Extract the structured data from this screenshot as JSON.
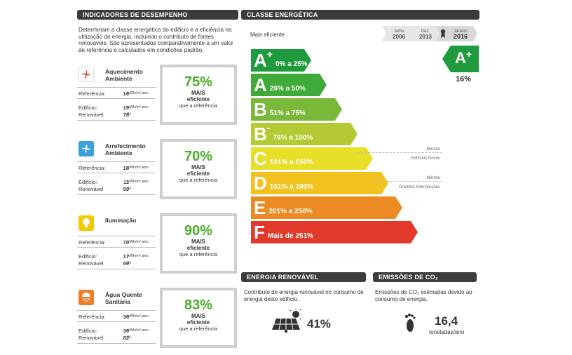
{
  "headers": {
    "performance": "INDICADORES DE DESEMPENHO",
    "energy_class": "CLASSE ENERGÉTICA",
    "renewable": "ENERGIA RENOVÁVEL",
    "emissions": "EMISSÕES DE CO₂"
  },
  "intro": "Determinam a classe energética do edifício e a eficiência na utilização de energia, incluindo o contributo de fontes renováveis. São apresentados comparativamente a um valor de referência e calculados em condições padrão.",
  "performance": [
    {
      "title": "Aquecimento Ambiente",
      "icon": "fan-heating-icon",
      "color": "#e84e3c",
      "ref_label": "Referência:",
      "ref": "16",
      "unit": "kWh/m².ano",
      "bld_label": "Edifício:",
      "bld": "19",
      "bld_unit": "kWh/m².ano",
      "ren_label": "Renovável",
      "ren": "78",
      "ren_unit": "%",
      "pct": "75%",
      "mais": "MAIS",
      "eficiente": "eficiente",
      "ref_text": "que a referência"
    },
    {
      "title": "Arrefecimento Ambiente",
      "icon": "fan-cooling-icon",
      "color": "#3aa0d8",
      "ref_label": "Referência:",
      "ref": "16",
      "unit": "kWh/m².ano",
      "bld_label": "Edifício:",
      "bld": "11",
      "bld_unit": "kWh/m².ano",
      "ren_label": "Renovável",
      "ren": "59",
      "ren_unit": "%",
      "pct": "70%",
      "mais": "MAIS",
      "eficiente": "eficiente",
      "ref_text": "que a referência"
    },
    {
      "title": "Iluminação",
      "icon": "lightbulb-icon",
      "color": "#f5c800",
      "ref_label": "Referência:",
      "ref": "70",
      "unit": "kWh/m².ano",
      "bld_label": "Edifício:",
      "bld": "17",
      "bld_unit": "kWh/m².ano",
      "ren_label": "Renovável",
      "ren": "59",
      "ren_unit": "%",
      "pct": "90%",
      "mais": "MAIS",
      "eficiente": "eficiente",
      "ref_text": "que a referência"
    },
    {
      "title": "Água Quente Sanitária",
      "icon": "shower-icon",
      "color": "#f07c2a",
      "ref_label": "Referência:",
      "ref": "36",
      "unit": "kWh/m².ano",
      "bld_label": "Edifício:",
      "bld": "36",
      "bld_unit": "kWh/m².ano",
      "ren_label": "Renovável",
      "ren": "82",
      "ren_unit": "%",
      "pct": "83%",
      "mais": "MAIS",
      "eficiente": "eficiente",
      "ref_text": "que a referência"
    }
  ],
  "energy_class": {
    "mais_eficiente": "Mais eficiente",
    "timeline": [
      {
        "month": "Julho",
        "year": "2006"
      },
      {
        "month": "Dez.",
        "year": "2013"
      },
      {
        "month": "Janeiro",
        "year": "2016"
      }
    ],
    "current_class": "A",
    "current_sup": "+",
    "current_pct": "16%",
    "bars": [
      {
        "letter": "A",
        "sup": "+",
        "range": "0% a 25%",
        "color": "#1f9a3c"
      },
      {
        "letter": "A",
        "sup": "",
        "range": "26% a 50%",
        "color": "#3fa93a"
      },
      {
        "letter": "B",
        "sup": "",
        "range": "51% a 75%",
        "color": "#7ab83a"
      },
      {
        "letter": "B",
        "sup": "-",
        "range": "76% a 100%",
        "color": "#b5c934"
      },
      {
        "letter": "C",
        "sup": "",
        "range": "101% a 150%",
        "color": "#e8df28"
      },
      {
        "letter": "D",
        "sup": "",
        "range": "151% a 200%",
        "color": "#f2c21f"
      },
      {
        "letter": "E",
        "sup": "",
        "range": "201% a 250%",
        "color": "#ec8a24"
      },
      {
        "letter": "F",
        "sup": "",
        "range": "Mais de 251%",
        "color": "#e23a2a"
      }
    ],
    "min_new_label1": "Mínimo",
    "min_new_label2": "Edifícios Novos",
    "min_interv_label1": "Mínimo",
    "min_interv_label2": "Grandes Intervenções"
  },
  "renewable": {
    "text": "Contributo de energia renovável no consumo de energia deste edifício.",
    "value": "41%"
  },
  "emissions": {
    "text": "Emissões de CO₂ estimadas devido ao consumo de energia.",
    "value": "16,4",
    "unit": "toneladas/ano"
  }
}
